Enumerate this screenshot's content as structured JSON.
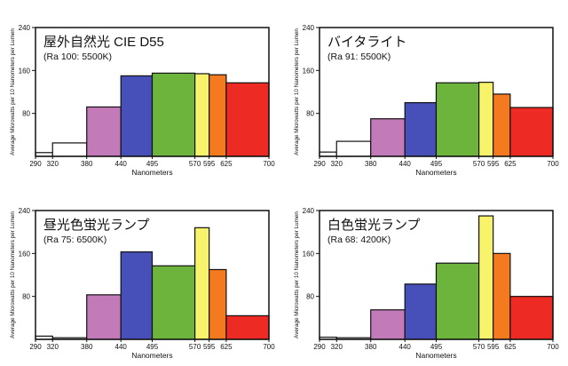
{
  "y_axis_label": "Average Microwatts per 10 Nanometers per Lumen",
  "x_axis_label": "Nanometers",
  "colors": {
    "white": "#ffffff",
    "violet": "#c27bb8",
    "blue": "#4650b8",
    "green": "#6cb43c",
    "yellow": "#f7f36a",
    "orange": "#f47a20",
    "red": "#ee2a24",
    "frame": "#111111"
  },
  "chart_data": [
    {
      "type": "bar",
      "title": "屋外自然光 CIE D55",
      "subtitle": "(Ra 100: 5500K)",
      "xlabel": "Nanometers",
      "ylabel": "Average Microwatts per 10 Nanometers per Lumen",
      "xlim": [
        290,
        700
      ],
      "ylim": [
        0,
        240
      ],
      "x_ticks": [
        290,
        320,
        380,
        440,
        495,
        570,
        595,
        625,
        700
      ],
      "y_ticks": [
        80,
        160,
        240
      ],
      "bins": [
        {
          "from": 290,
          "to": 320,
          "value": 7,
          "color": "white"
        },
        {
          "from": 320,
          "to": 380,
          "value": 25,
          "color": "white"
        },
        {
          "from": 380,
          "to": 440,
          "value": 92,
          "color": "violet"
        },
        {
          "from": 440,
          "to": 495,
          "value": 150,
          "color": "blue"
        },
        {
          "from": 495,
          "to": 570,
          "value": 155,
          "color": "green"
        },
        {
          "from": 570,
          "to": 595,
          "value": 154,
          "color": "yellow"
        },
        {
          "from": 595,
          "to": 625,
          "value": 152,
          "color": "orange"
        },
        {
          "from": 625,
          "to": 700,
          "value": 137,
          "color": "red"
        }
      ]
    },
    {
      "type": "bar",
      "title": "バイタライト",
      "subtitle": "(Ra 91: 5500K)",
      "xlabel": "Nanometers",
      "ylabel": "Average Microwatts per 10 Nanometers per Lumen",
      "xlim": [
        290,
        700
      ],
      "ylim": [
        0,
        240
      ],
      "x_ticks": [
        290,
        320,
        380,
        440,
        495,
        570,
        595,
        625,
        700
      ],
      "y_ticks": [
        80,
        160,
        240
      ],
      "bins": [
        {
          "from": 290,
          "to": 320,
          "value": 8,
          "color": "white"
        },
        {
          "from": 320,
          "to": 380,
          "value": 28,
          "color": "white"
        },
        {
          "from": 380,
          "to": 440,
          "value": 70,
          "color": "violet"
        },
        {
          "from": 440,
          "to": 495,
          "value": 100,
          "color": "blue"
        },
        {
          "from": 495,
          "to": 570,
          "value": 137,
          "color": "green"
        },
        {
          "from": 570,
          "to": 595,
          "value": 138,
          "color": "yellow"
        },
        {
          "from": 595,
          "to": 625,
          "value": 116,
          "color": "orange"
        },
        {
          "from": 625,
          "to": 700,
          "value": 91,
          "color": "red"
        }
      ]
    },
    {
      "type": "bar",
      "title": "昼光色蛍光ランプ",
      "subtitle": "(Ra 75: 6500K)",
      "xlabel": "Nanometers",
      "ylabel": "Average Microwatts per 10 Nanometers per Lumen",
      "xlim": [
        290,
        700
      ],
      "ylim": [
        0,
        240
      ],
      "x_ticks": [
        290,
        320,
        380,
        440,
        495,
        570,
        595,
        625,
        700
      ],
      "y_ticks": [
        80,
        160,
        240
      ],
      "bins": [
        {
          "from": 290,
          "to": 320,
          "value": 6,
          "color": "white"
        },
        {
          "from": 320,
          "to": 380,
          "value": 3,
          "color": "white"
        },
        {
          "from": 380,
          "to": 440,
          "value": 83,
          "color": "violet"
        },
        {
          "from": 440,
          "to": 495,
          "value": 163,
          "color": "blue"
        },
        {
          "from": 495,
          "to": 570,
          "value": 137,
          "color": "green"
        },
        {
          "from": 570,
          "to": 595,
          "value": 208,
          "color": "yellow"
        },
        {
          "from": 595,
          "to": 625,
          "value": 130,
          "color": "orange"
        },
        {
          "from": 625,
          "to": 700,
          "value": 44,
          "color": "red"
        }
      ]
    },
    {
      "type": "bar",
      "title": "白色蛍光ランプ",
      "subtitle": "(Ra 68: 4200K)",
      "xlabel": "Nanometers",
      "ylabel": "Average Microwatts per 10 Nanometers per Lumen",
      "xlim": [
        290,
        700
      ],
      "ylim": [
        0,
        240
      ],
      "x_ticks": [
        290,
        320,
        380,
        440,
        495,
        570,
        595,
        625,
        700
      ],
      "y_ticks": [
        80,
        160,
        240
      ],
      "bins": [
        {
          "from": 290,
          "to": 320,
          "value": 4,
          "color": "white"
        },
        {
          "from": 320,
          "to": 380,
          "value": 3,
          "color": "white"
        },
        {
          "from": 380,
          "to": 440,
          "value": 55,
          "color": "violet"
        },
        {
          "from": 440,
          "to": 495,
          "value": 103,
          "color": "blue"
        },
        {
          "from": 495,
          "to": 570,
          "value": 142,
          "color": "green"
        },
        {
          "from": 570,
          "to": 595,
          "value": 230,
          "color": "yellow"
        },
        {
          "from": 595,
          "to": 625,
          "value": 160,
          "color": "orange"
        },
        {
          "from": 625,
          "to": 700,
          "value": 80,
          "color": "red"
        }
      ]
    }
  ]
}
